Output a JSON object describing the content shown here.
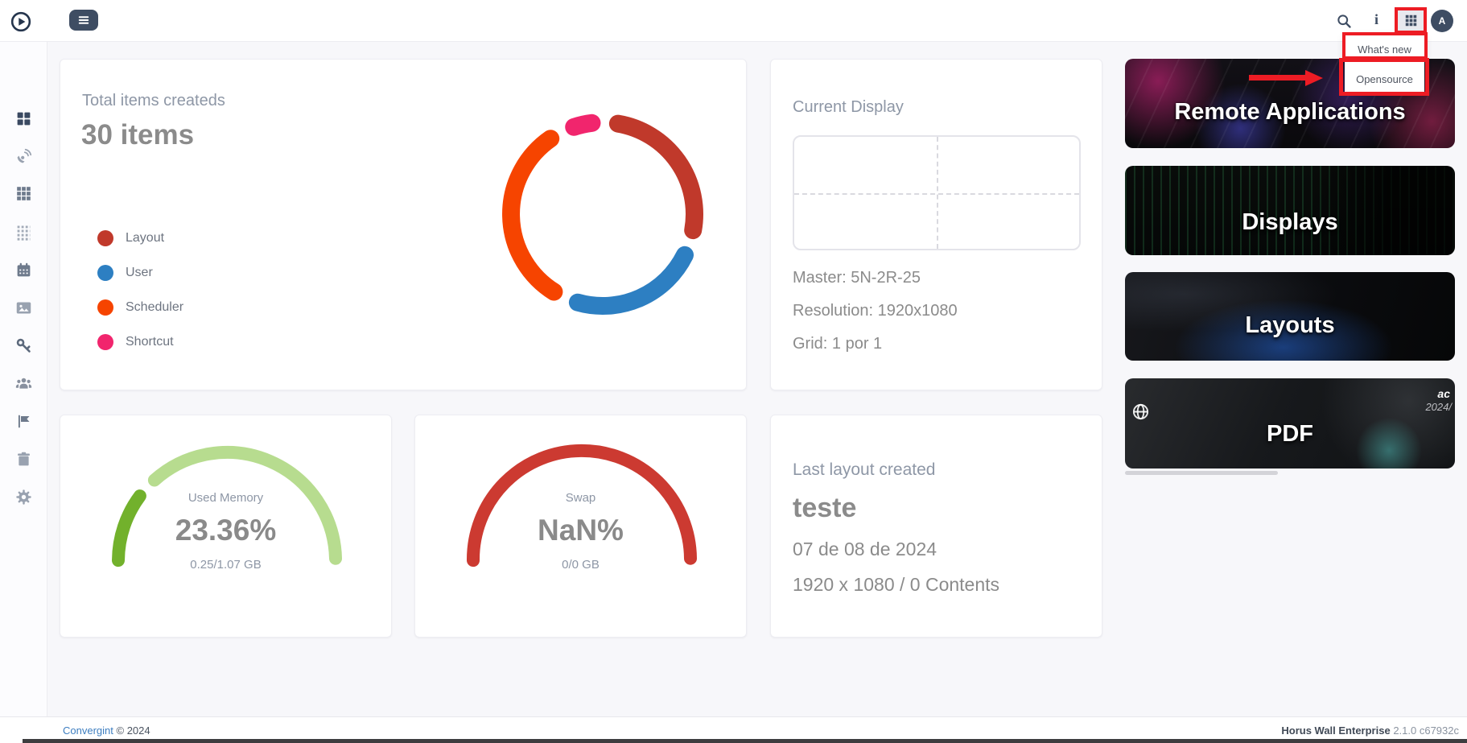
{
  "topbar": {
    "avatar_initial": "A"
  },
  "dropdown": {
    "items": [
      "What's new",
      "Opensource"
    ]
  },
  "sidebar": {
    "items": [
      "dashboard",
      "remote-control",
      "applications",
      "layouts-grid",
      "scheduler-calendar",
      "media-gallery",
      "keys",
      "users",
      "flags",
      "trash",
      "settings"
    ]
  },
  "chart_data": [
    {
      "type": "donut",
      "title": "Total items createds",
      "total_label": "30 items",
      "total": 30,
      "segments": [
        {
          "label": "Layout",
          "value": 9,
          "color": "#c0392b"
        },
        {
          "label": "User",
          "value": 8,
          "color": "#2d7fc2"
        },
        {
          "label": "Scheduler",
          "value": 11,
          "color": "#f64400"
        },
        {
          "label": "Shortcut",
          "value": 2,
          "color": "#f1256d"
        }
      ],
      "start_angle_deg": 4,
      "gap_deg": 5.25,
      "legend_position": "left"
    },
    {
      "type": "gauge",
      "label": "Used Memory",
      "percent": 23.36,
      "value_text": "23.36%",
      "detail": "0.25/1.07 GB",
      "value_color": "#72b12c",
      "track_color": "#b7dc8f",
      "sweep_deg": 185
    },
    {
      "type": "gauge",
      "label": "Swap",
      "percent": 100,
      "value_text": "NaN%",
      "detail": "0/0 GB",
      "value_color": "#cc3a31",
      "track_color": "#cc3a31",
      "sweep_deg": 185
    }
  ],
  "current_display": {
    "title": "Current Display",
    "master": "Master: 5N-2R-25",
    "resolution": "Resolution: 1920x1080",
    "grid": "Grid: 1 por 1"
  },
  "last_layout": {
    "title": "Last layout created",
    "name": "teste",
    "date": "07 de 08 de 2024",
    "info": "1920 x 1080  /  0 Contents"
  },
  "quick_links": [
    {
      "label": "Remote Applications"
    },
    {
      "label": "Displays"
    },
    {
      "label": "Layouts"
    },
    {
      "label": "PDF",
      "corner_text_top": "ac",
      "corner_text_bottom": "2024/"
    }
  ],
  "footer": {
    "brand": "Convergint",
    "copyright": "© 2024",
    "product": "Horus Wall Enterprise",
    "version": "2.1.0 c67932c"
  }
}
